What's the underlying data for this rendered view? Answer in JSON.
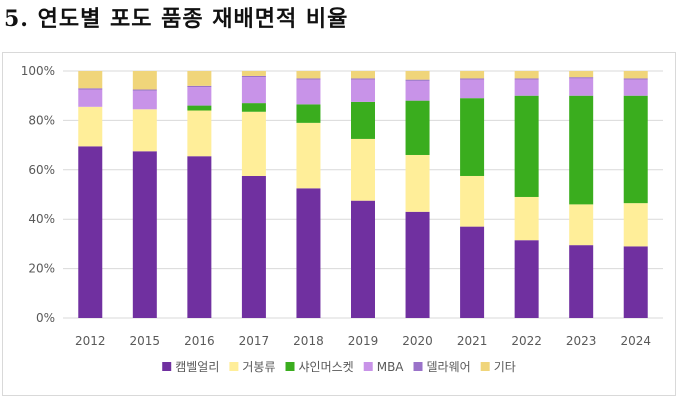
{
  "title": "5. 연도별 포도 품종 재배면적 비율",
  "chart_data": {
    "type": "bar",
    "stacked": true,
    "title": "5. 연도별 포도 품종 재배면적 비율",
    "xlabel": "",
    "ylabel": "",
    "ylim": [
      0,
      100
    ],
    "yticks": [
      "0%",
      "20%",
      "40%",
      "60%",
      "80%",
      "100%"
    ],
    "categories": [
      "2012",
      "2015",
      "2016",
      "2017",
      "2018",
      "2019",
      "2020",
      "2021",
      "2022",
      "2023",
      "2024"
    ],
    "legend_position": "bottom",
    "series": [
      {
        "name": "캠벨얼리",
        "color": "#7030a0",
        "values": [
          69.5,
          67.5,
          65.5,
          57.5,
          52.5,
          47.5,
          43,
          37,
          31.5,
          29.5,
          29
        ]
      },
      {
        "name": "거봉류",
        "color": "#ffee99",
        "values": [
          16,
          17,
          18.5,
          26,
          26.5,
          25,
          23,
          20.5,
          17.5,
          16.5,
          17.5
        ]
      },
      {
        "name": "샤인머스켓",
        "color": "#3aad1e",
        "values": [
          0,
          0,
          2,
          3.5,
          7.5,
          15,
          22,
          31.5,
          41,
          44,
          43.5
        ]
      },
      {
        "name": "MBA",
        "color": "#c893e8",
        "values": [
          7,
          7.5,
          7.5,
          10.5,
          10,
          9,
          8,
          7.5,
          6.5,
          7,
          6.5
        ]
      },
      {
        "name": "델라웨어",
        "color": "#9a72c9",
        "values": [
          0.5,
          0.5,
          0.5,
          0.5,
          0.5,
          0.5,
          0.5,
          0.5,
          0.5,
          0.5,
          0.5
        ]
      },
      {
        "name": "기타",
        "color": "#f0d57a",
        "values": [
          7,
          7.5,
          6,
          2,
          3,
          3,
          3.5,
          3,
          3,
          2.5,
          3
        ]
      }
    ]
  }
}
